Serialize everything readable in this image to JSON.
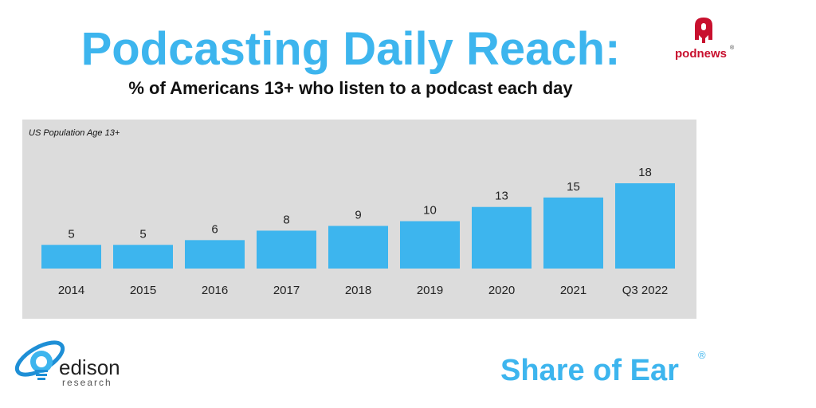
{
  "header": {
    "title": "Podcasting Daily Reach:",
    "subtitle": "% of Americans 13+ who listen to a podcast each day"
  },
  "logos": {
    "podnews": "podnews",
    "edison_name": "edison",
    "edison_sub": "research",
    "share_of_ear": "Share of Ear",
    "registered_mark": "®"
  },
  "colors": {
    "accent": "#3db5ee",
    "bar": "#3db5ee",
    "panel": "#dcdcdc",
    "podnews_red": "#c8102e"
  },
  "chart_data": {
    "type": "bar",
    "note": "US Population Age 13+",
    "categories": [
      "2014",
      "2015",
      "2016",
      "2017",
      "2018",
      "2019",
      "2020",
      "2021",
      "Q3 2022"
    ],
    "values": [
      5,
      5,
      6,
      8,
      9,
      10,
      13,
      15,
      18
    ],
    "ylim": [
      0,
      18
    ],
    "grid": false,
    "data_labels": true
  }
}
